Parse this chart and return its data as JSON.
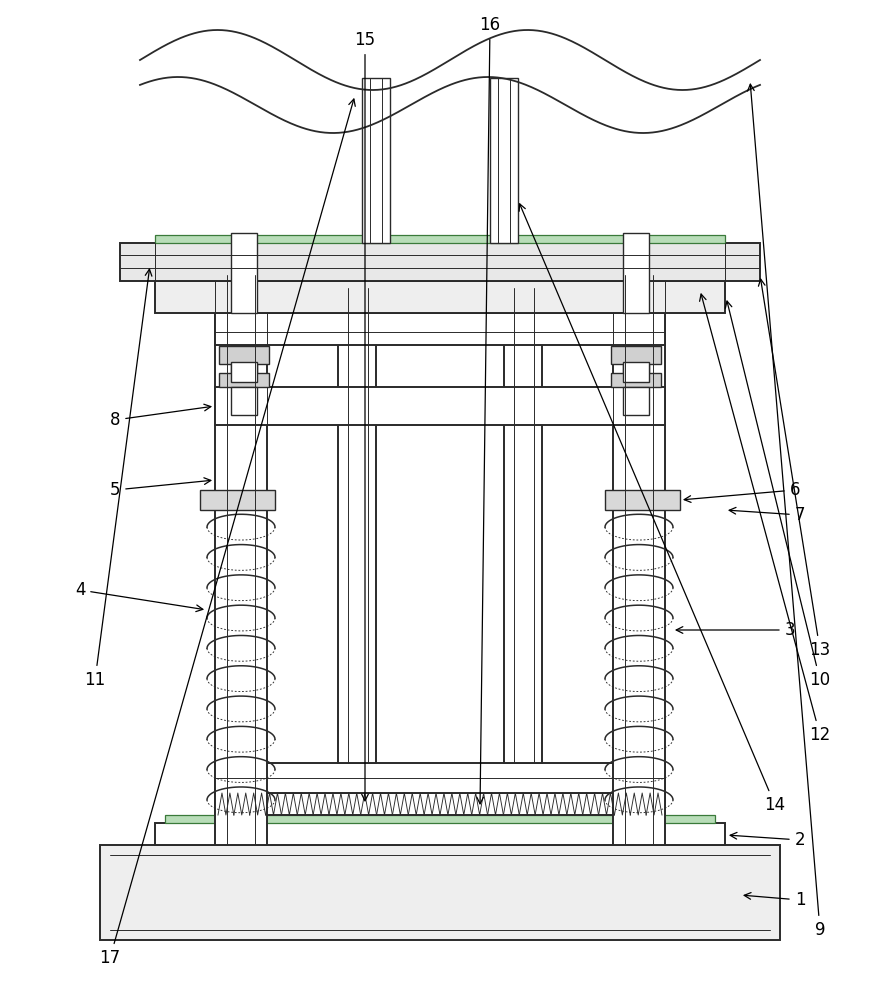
{
  "bg_color": "#ffffff",
  "lc": "#2a2a2a",
  "gc": "#3a7a3a",
  "lw_main": 1.4,
  "lw_thin": 0.7,
  "lw_med": 1.0
}
